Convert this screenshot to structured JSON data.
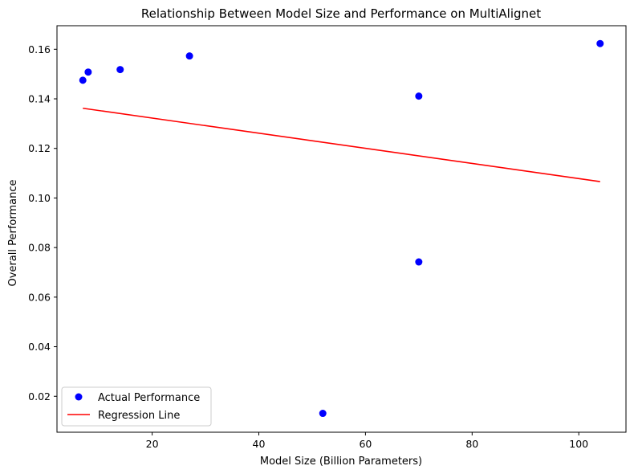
{
  "chart_data": {
    "type": "scatter",
    "title": "Relationship Between Model Size and Performance on MultiAlignet",
    "xlabel": "Model Size (Billion Parameters)",
    "ylabel": "Overall Performance",
    "xlim": [
      2.15,
      108.85
    ],
    "ylim": [
      0.0055,
      0.1695
    ],
    "xticks": [
      20,
      40,
      60,
      80,
      100
    ],
    "yticks": [
      0.02,
      0.04,
      0.06,
      0.08,
      0.1,
      0.12,
      0.14,
      0.16
    ],
    "xtick_labels": [
      "20",
      "40",
      "60",
      "80",
      "100"
    ],
    "ytick_labels": [
      "0.02",
      "0.04",
      "0.06",
      "0.08",
      "0.10",
      "0.12",
      "0.14",
      "0.16"
    ],
    "grid": false,
    "legend_position": "lower-left",
    "series": [
      {
        "name": "Actual Performance",
        "kind": "scatter",
        "color": "#0000ff",
        "x": [
          7,
          8,
          14,
          27,
          52,
          70,
          70,
          104
        ],
        "y": [
          0.1475,
          0.1508,
          0.1518,
          0.1573,
          0.0131,
          0.1411,
          0.0742,
          0.1623
        ]
      },
      {
        "name": "Regression Line",
        "kind": "line",
        "color": "#ff0000",
        "x": [
          7,
          104
        ],
        "y": [
          0.1362,
          0.1066
        ]
      }
    ]
  }
}
